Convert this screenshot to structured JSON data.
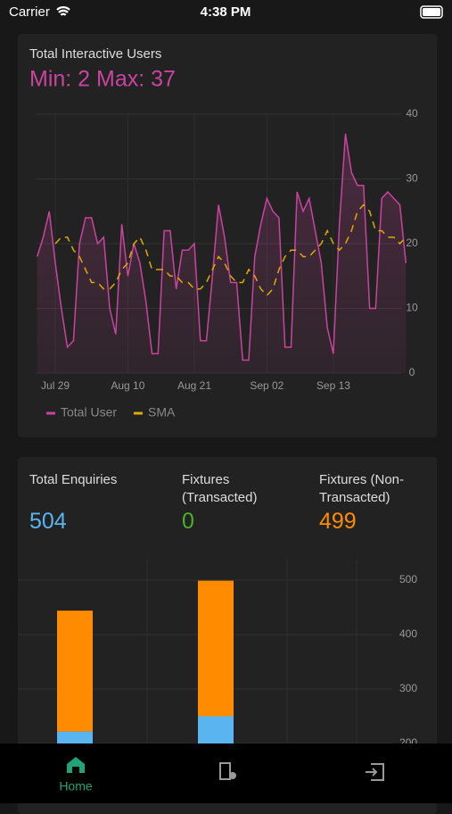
{
  "status_bar": {
    "carrier": "Carrier",
    "time": "4:38 PM"
  },
  "users_card": {
    "title": "Total Interactive Users",
    "summary": "Min: 2 Max: 37",
    "chart": {
      "type": "line",
      "categories": [
        null,
        null,
        null,
        "Jul 29",
        null,
        null,
        null,
        null,
        null,
        null,
        null,
        null,
        null,
        null,
        null,
        "Aug 10",
        null,
        null,
        null,
        null,
        null,
        null,
        null,
        null,
        null,
        null,
        "Aug 21",
        null,
        null,
        null,
        null,
        null,
        null,
        null,
        null,
        null,
        null,
        null,
        "Sep 02",
        null,
        null,
        null,
        null,
        null,
        null,
        null,
        null,
        null,
        null,
        "Sep 13",
        null,
        null,
        null,
        null,
        null,
        null,
        null,
        null,
        null,
        null,
        null,
        null
      ],
      "series": [
        {
          "name": "Total User",
          "color": "#c9449e",
          "values": [
            18,
            21,
            25,
            17,
            10,
            4,
            5,
            20,
            24,
            24,
            20,
            21,
            10,
            6,
            23,
            15,
            20,
            17,
            11,
            3,
            3,
            22,
            22,
            13,
            19,
            19,
            20,
            5,
            5,
            15,
            26,
            21,
            14,
            14,
            2,
            2,
            18,
            23,
            27,
            25,
            24,
            4,
            4,
            28,
            25,
            27,
            22,
            17,
            7,
            3,
            23,
            37,
            31,
            29,
            29,
            10,
            10,
            27,
            28,
            27,
            26,
            17
          ]
        },
        {
          "name": "SMA",
          "color": "#e0a800",
          "values": [
            null,
            null,
            null,
            20,
            21,
            21,
            19,
            18,
            16,
            14,
            14,
            13,
            13,
            14,
            16,
            17,
            20,
            21,
            19,
            16,
            16,
            16,
            15,
            15,
            14,
            14,
            13,
            13,
            14,
            16,
            18,
            17,
            15,
            14,
            14,
            16,
            15,
            13,
            12,
            13,
            16,
            18,
            19,
            19,
            18,
            18,
            19,
            20,
            22,
            20,
            19,
            20,
            22,
            25,
            26,
            25,
            22,
            22,
            21,
            21,
            20,
            21
          ]
        }
      ],
      "ylim": [
        0,
        40
      ],
      "yticks": [
        0,
        10,
        20,
        30,
        40
      ],
      "grid": true
    }
  },
  "enquiries_card": {
    "stats": [
      {
        "label": "Total Enquiries",
        "value": 504,
        "color": "#5ab4f0"
      },
      {
        "label": "Fixtures (Transacted)",
        "value": 0,
        "color": "#4caf2a"
      },
      {
        "label": "Fixtures (Non-Transacted)",
        "value": 499,
        "color": "#ff8c00"
      }
    ],
    "chart": {
      "type": "bar",
      "categories": [
        null,
        null
      ],
      "series": [
        {
          "color": "#5ab4f0",
          "values": [
            222,
            250
          ]
        },
        {
          "color": "#ff8c00",
          "values": [
            222,
            249
          ]
        }
      ],
      "ylim": [
        0,
        540
      ],
      "yticks": [
        200,
        300,
        400,
        500
      ],
      "grid": true
    }
  },
  "tab_bar": {
    "home": "Home"
  }
}
